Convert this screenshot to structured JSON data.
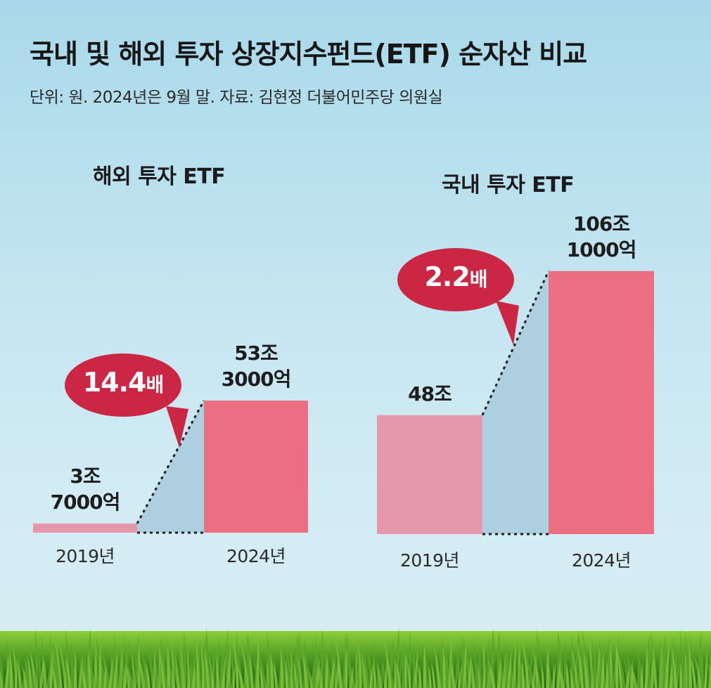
{
  "header": {
    "title": "국내 및 해외 투자 상장지수펀드(ETF) 순자산 비교",
    "subtitle": "단위: 원. 2024년은 9월 말. 자료: 김현정 더불어민주당 의원실"
  },
  "colors": {
    "sky_top": "#a9d9ea",
    "bar_2019": "#e597ab",
    "bar_2024": "#ec6e82",
    "bubble": "#cc2645",
    "connector_fill": "#aecfe0",
    "grass": "#4e9a22"
  },
  "chart_data": [
    {
      "type": "bar",
      "title": "해외 투자 ETF",
      "categories": [
        "2019년",
        "2024년"
      ],
      "values": [
        3.7,
        53.3
      ],
      "value_labels": [
        [
          "3조",
          "7000억"
        ],
        [
          "53조",
          "3000억"
        ]
      ],
      "unit": "조 원",
      "ratio": {
        "value": "14.4",
        "unit": "배"
      },
      "ylim": [
        0,
        110
      ]
    },
    {
      "type": "bar",
      "title": "국내 투자 ETF",
      "categories": [
        "2019년",
        "2024년"
      ],
      "values": [
        48,
        106.1
      ],
      "value_labels": [
        [
          "48조"
        ],
        [
          "106조",
          "1000억"
        ]
      ],
      "unit": "조 원",
      "ratio": {
        "value": "2.2",
        "unit": "배"
      },
      "ylim": [
        0,
        110
      ]
    }
  ]
}
